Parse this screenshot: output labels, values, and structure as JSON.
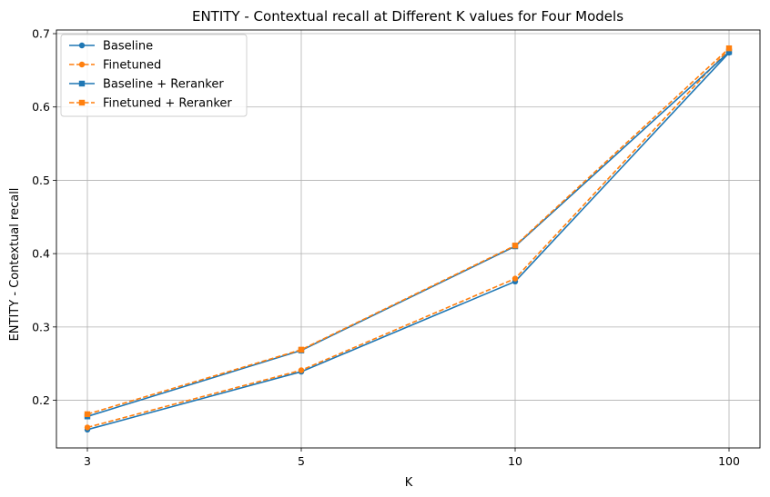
{
  "chart_data": {
    "type": "line",
    "title": "ENTITY - Contextual recall at Different K values for Four Models",
    "xlabel": "K",
    "ylabel": "ENTITY - Contextual recall",
    "categories": [
      "3",
      "5",
      "10",
      "100"
    ],
    "ylim": [
      0.135,
      0.705
    ],
    "yticks": [
      "0.2",
      "0.3",
      "0.4",
      "0.5",
      "0.6",
      "0.7"
    ],
    "grid": true,
    "legend_position": "top-left",
    "series": [
      {
        "name": "Baseline",
        "values": [
          0.16,
          0.239,
          0.362,
          0.674
        ],
        "color": "#1f77b4",
        "dash": "solid",
        "marker": "circle"
      },
      {
        "name": "Finetuned",
        "values": [
          0.163,
          0.241,
          0.366,
          0.679
        ],
        "color": "#ff7f0e",
        "dash": "dashed",
        "marker": "circle"
      },
      {
        "name": "Baseline + Reranker",
        "values": [
          0.178,
          0.268,
          0.41,
          0.675
        ],
        "color": "#1f77b4",
        "dash": "solid",
        "marker": "square"
      },
      {
        "name": "Finetuned + Reranker",
        "values": [
          0.181,
          0.269,
          0.411,
          0.68
        ],
        "color": "#ff7f0e",
        "dash": "dashed",
        "marker": "square"
      }
    ]
  }
}
